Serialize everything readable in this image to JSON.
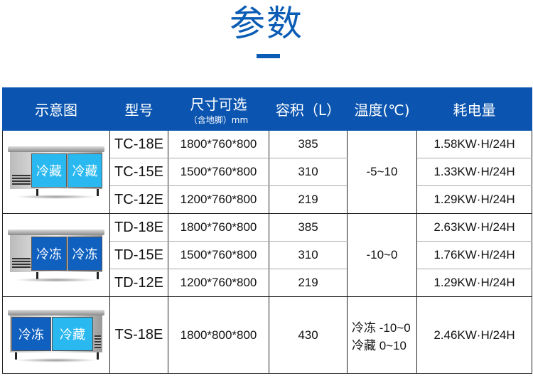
{
  "title": "参数",
  "colors": {
    "header": "#0b55b0",
    "chill_door": "#2ab8f0",
    "freeze_door": "#1060c0"
  },
  "headers": {
    "image": "示意图",
    "model": "型号",
    "size": "尺寸可选",
    "size_note": "（含地脚）mm",
    "volume": "容积（L）",
    "temp": "温度(℃)",
    "power": "耗电量"
  },
  "groups": [
    {
      "doors": [
        "冷藏",
        "冷藏"
      ],
      "temp": "-5~10",
      "rows": [
        {
          "model": "TC-18E",
          "size": "1800*760*800",
          "volume": "385",
          "power": "1.58KW·H/24H"
        },
        {
          "model": "TC-15E",
          "size": "1500*760*800",
          "volume": "310",
          "power": "1.33KW·H/24H"
        },
        {
          "model": "TC-12E",
          "size": "1200*760*800",
          "volume": "219",
          "power": "1.29KW·H/24H"
        }
      ]
    },
    {
      "doors": [
        "冷冻",
        "冷冻"
      ],
      "temp": "-10~0",
      "rows": [
        {
          "model": "TD-18E",
          "size": "1800*760*800",
          "volume": "385",
          "power": "2.63KW·H/24H"
        },
        {
          "model": "TD-15E",
          "size": "1500*760*800",
          "volume": "310",
          "power": "1.76KW·H/24H"
        },
        {
          "model": "TD-12E",
          "size": "1200*760*800",
          "volume": "219",
          "power": "1.29KW·H/24H"
        }
      ]
    },
    {
      "doors": [
        "冷冻",
        "冷藏"
      ],
      "temp_lines": [
        "冷冻 -10~0",
        "冷藏 0~10"
      ],
      "rows": [
        {
          "model": "TS-18E",
          "size": "1800*800*800",
          "volume": "430",
          "power": "2.46KW·H/24H"
        }
      ]
    }
  ]
}
